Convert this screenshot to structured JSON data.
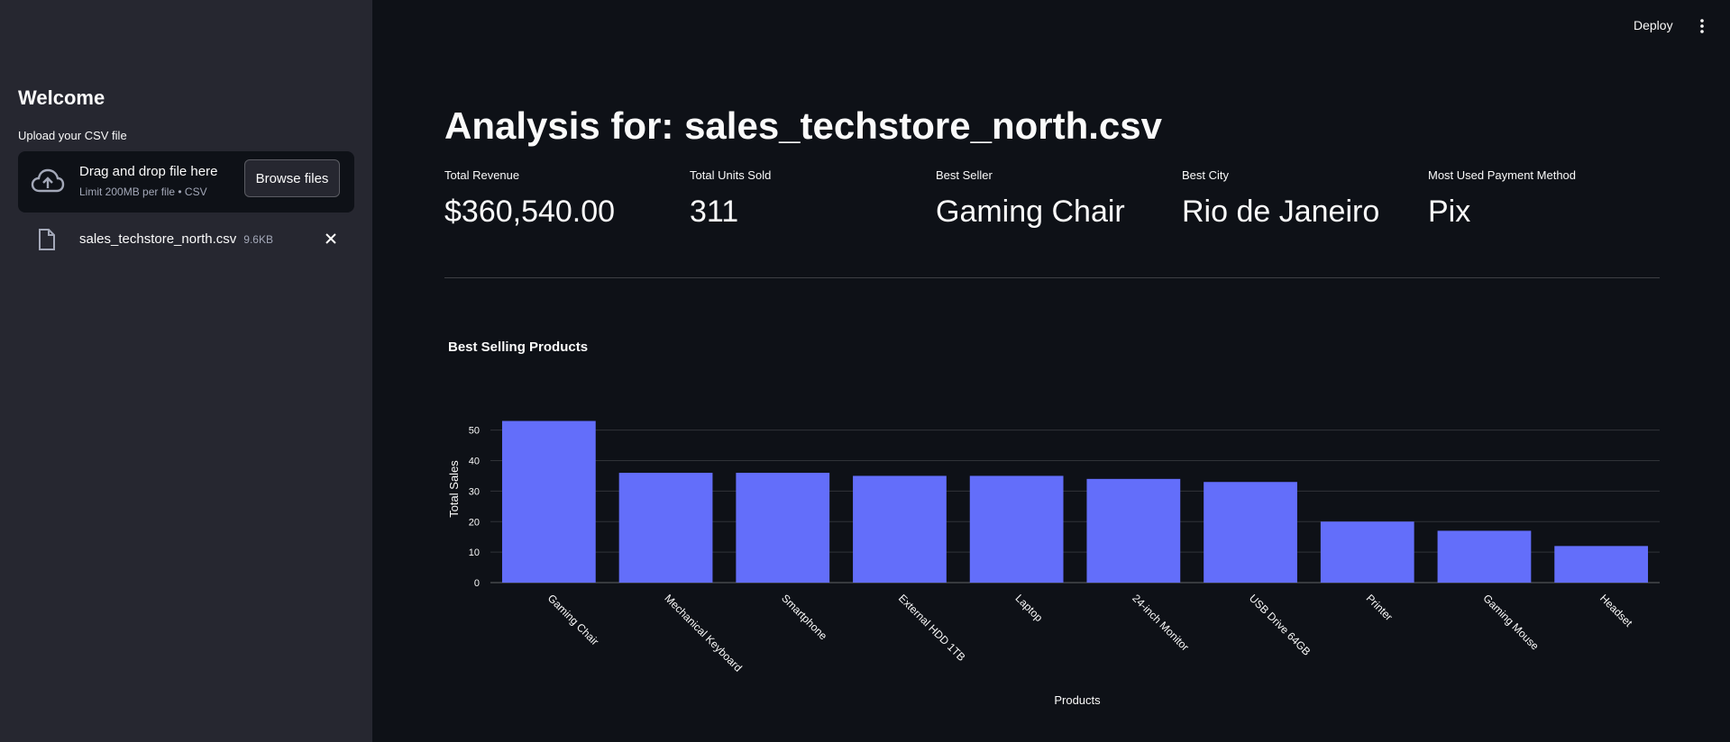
{
  "sidebar": {
    "title": "Welcome",
    "upload_label": "Upload your CSV file",
    "dropzone": {
      "main_text": "Drag and drop file here",
      "sub_text": "Limit 200MB per file • CSV",
      "browse_label": "Browse files",
      "icon": "cloud-upload-icon"
    },
    "file": {
      "name": "sales_techstore_north.csv",
      "size": "9.6KB",
      "icon": "file-icon"
    }
  },
  "topbar": {
    "deploy_label": "Deploy",
    "menu_icon": "vertical-dots-icon"
  },
  "main": {
    "title": "Analysis for: sales_techstore_north.csv",
    "metrics": [
      {
        "label": "Total Revenue",
        "value": "$360,540.00"
      },
      {
        "label": "Total Units Sold",
        "value": "311"
      },
      {
        "label": "Best Seller",
        "value": "Gaming Chair"
      },
      {
        "label": "Best City",
        "value": "Rio de Janeiro"
      },
      {
        "label": "Most Used Payment Method",
        "value": "Pix"
      }
    ]
  },
  "colors": {
    "bar": "#636efa",
    "background": "#0e1117",
    "sidebar": "#262730"
  },
  "chart_data": {
    "type": "bar",
    "title": "Best Selling Products",
    "xlabel": "Products",
    "ylabel": "Total Sales",
    "categories": [
      "Gaming Chair",
      "Mechanical Keyboard",
      "Smartphone",
      "External HDD 1TB",
      "Laptop",
      "24-inch Monitor",
      "USB Drive 64GB",
      "Printer",
      "Gaming Mouse",
      "Headset"
    ],
    "values": [
      53,
      36,
      36,
      35,
      35,
      34,
      33,
      20,
      17,
      12
    ],
    "yticks": [
      0,
      10,
      20,
      30,
      40,
      50
    ],
    "ylim": [
      0,
      55.8
    ],
    "grid": true
  }
}
